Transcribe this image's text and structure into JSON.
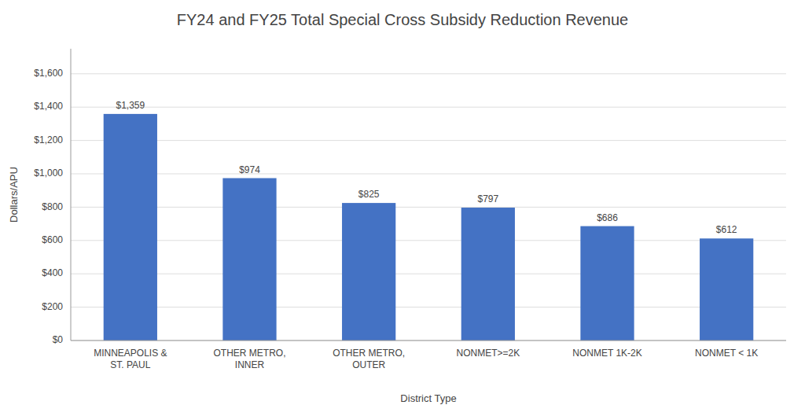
{
  "chart_data": {
    "type": "bar",
    "title": "FY24 and FY25 Total Special Cross Subsidy Reduction Revenue",
    "categories": [
      "MINNEAPOLIS &\nST. PAUL",
      "OTHER METRO,\nINNER",
      "OTHER METRO,\nOUTER",
      "NONMET>=2K",
      "NONMET 1K-2K",
      "NONMET < 1K"
    ],
    "values": [
      1359,
      974,
      825,
      797,
      686,
      612
    ],
    "value_labels": [
      "$1,359",
      "$974",
      "$825",
      "$797",
      "$686",
      "$612"
    ],
    "data_labels": true,
    "color": "#4472C4",
    "xlabel": "District Type",
    "ylabel": "Dollars/APU",
    "ylim": [
      0,
      1750
    ],
    "yticks": [
      {
        "value": 0,
        "label": "$0"
      },
      {
        "value": 200,
        "label": "$200"
      },
      {
        "value": 400,
        "label": "$400"
      },
      {
        "value": 600,
        "label": "$600"
      },
      {
        "value": 800,
        "label": "$800"
      },
      {
        "value": 1000,
        "label": "$1,000"
      },
      {
        "value": 1200,
        "label": "$1,200"
      },
      {
        "value": 1400,
        "label": "$1,400"
      },
      {
        "value": 1600,
        "label": "$1,600"
      }
    ],
    "grid": true
  }
}
